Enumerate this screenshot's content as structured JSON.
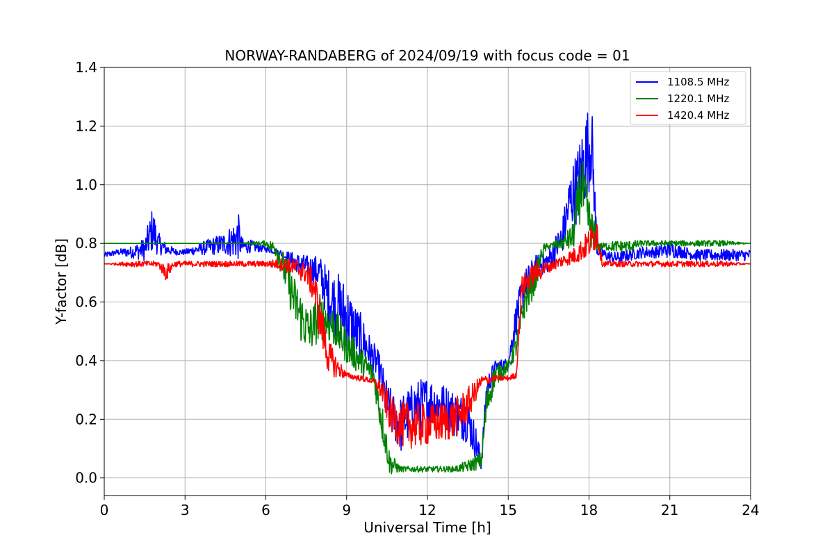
{
  "chart_data": {
    "type": "line",
    "title": "NORWAY-RANDABERG of 2024/09/19 with focus code = 01",
    "xlabel": "Universal Time [h]",
    "ylabel": "Y-factor [dB]",
    "xlim": [
      0,
      24
    ],
    "ylim": [
      -0.06,
      1.4
    ],
    "xticks": [
      0,
      3,
      6,
      9,
      12,
      15,
      18,
      21,
      24
    ],
    "xtick_labels": [
      "0",
      "3",
      "6",
      "9",
      "12",
      "15",
      "18",
      "21",
      "24"
    ],
    "yticks": [
      0.0,
      0.2,
      0.4,
      0.6,
      0.8,
      1.0,
      1.2,
      1.4
    ],
    "ytick_labels": [
      "0.0",
      "0.2",
      "0.4",
      "0.6",
      "0.8",
      "1.0",
      "1.2",
      "1.4"
    ],
    "grid": true,
    "legend_position": "top-right",
    "series": [
      {
        "name": "1108.5 MHz",
        "color": "#0000ff",
        "x": [
          0,
          0.5,
          1.0,
          1.5,
          1.8,
          2.0,
          2.3,
          2.7,
          3.0,
          3.5,
          4.0,
          4.5,
          5.0,
          5.1,
          5.5,
          6.0,
          6.5,
          7.0,
          7.5,
          8.0,
          8.3,
          8.7,
          9.0,
          9.3,
          9.6,
          9.9,
          10.2,
          10.5,
          10.8,
          11.0,
          11.5,
          12.0,
          12.5,
          13.0,
          13.5,
          13.8,
          14.0,
          14.2,
          14.5,
          15.0,
          15.3,
          15.6,
          16.0,
          16.5,
          17.0,
          17.3,
          17.6,
          17.9,
          18.1,
          18.3,
          18.6,
          19.0,
          19.5,
          20.0,
          20.5,
          21.0,
          21.5,
          22.0,
          22.5,
          23.0,
          23.5,
          24.0
        ],
        "y": [
          0.76,
          0.77,
          0.77,
          0.78,
          0.85,
          0.8,
          0.78,
          0.77,
          0.77,
          0.78,
          0.79,
          0.8,
          0.82,
          0.79,
          0.79,
          0.78,
          0.77,
          0.74,
          0.72,
          0.7,
          0.62,
          0.58,
          0.55,
          0.5,
          0.47,
          0.42,
          0.38,
          0.25,
          0.2,
          0.18,
          0.24,
          0.26,
          0.25,
          0.22,
          0.2,
          0.12,
          0.05,
          0.3,
          0.38,
          0.39,
          0.55,
          0.65,
          0.72,
          0.74,
          0.82,
          0.95,
          1.0,
          1.1,
          1.15,
          0.78,
          0.76,
          0.75,
          0.76,
          0.77,
          0.77,
          0.78,
          0.77,
          0.76,
          0.76,
          0.76,
          0.76,
          0.76
        ],
        "amplitude": [
          0.01,
          0.01,
          0.02,
          0.04,
          0.08,
          0.04,
          0.02,
          0.01,
          0.01,
          0.02,
          0.03,
          0.04,
          0.08,
          0.03,
          0.02,
          0.01,
          0.01,
          0.03,
          0.04,
          0.06,
          0.1,
          0.12,
          0.12,
          0.1,
          0.08,
          0.06,
          0.05,
          0.08,
          0.08,
          0.1,
          0.09,
          0.09,
          0.08,
          0.08,
          0.08,
          0.06,
          0.03,
          0.05,
          0.02,
          0.02,
          0.06,
          0.06,
          0.04,
          0.04,
          0.06,
          0.1,
          0.14,
          0.16,
          0.14,
          0.03,
          0.02,
          0.02,
          0.02,
          0.02,
          0.02,
          0.03,
          0.02,
          0.02,
          0.02,
          0.02,
          0.02,
          0.02
        ]
      },
      {
        "name": "1220.1 MHz",
        "color": "#008000",
        "x": [
          0,
          1.0,
          2.0,
          3.0,
          4.0,
          5.0,
          6.0,
          6.4,
          6.8,
          7.0,
          7.3,
          7.6,
          8.0,
          8.5,
          9.0,
          9.5,
          10.0,
          10.3,
          10.6,
          11.0,
          11.5,
          12.0,
          12.5,
          13.0,
          13.5,
          14.0,
          14.2,
          14.5,
          15.0,
          15.3,
          15.6,
          16.0,
          16.3,
          16.5,
          17.0,
          17.4,
          17.7,
          18.0,
          18.2,
          18.4,
          19.0,
          19.5,
          20.0,
          21.0,
          22.0,
          23.0,
          24.0
        ],
        "y": [
          0.8,
          0.8,
          0.8,
          0.8,
          0.8,
          0.8,
          0.8,
          0.78,
          0.68,
          0.62,
          0.55,
          0.5,
          0.55,
          0.52,
          0.45,
          0.4,
          0.35,
          0.2,
          0.05,
          0.03,
          0.03,
          0.03,
          0.03,
          0.03,
          0.04,
          0.06,
          0.25,
          0.35,
          0.38,
          0.45,
          0.6,
          0.68,
          0.78,
          0.79,
          0.8,
          0.82,
          1.0,
          0.88,
          0.82,
          0.79,
          0.79,
          0.79,
          0.8,
          0.8,
          0.8,
          0.8,
          0.8
        ],
        "amplitude": [
          0.0,
          0.0,
          0.0,
          0.0,
          0.0,
          0.0,
          0.01,
          0.03,
          0.07,
          0.08,
          0.09,
          0.08,
          0.08,
          0.07,
          0.06,
          0.05,
          0.04,
          0.07,
          0.04,
          0.01,
          0.01,
          0.01,
          0.01,
          0.01,
          0.02,
          0.03,
          0.06,
          0.04,
          0.02,
          0.04,
          0.06,
          0.05,
          0.02,
          0.01,
          0.02,
          0.05,
          0.12,
          0.08,
          0.06,
          0.01,
          0.02,
          0.02,
          0.01,
          0.01,
          0.01,
          0.01,
          0.0
        ]
      },
      {
        "name": "1420.4 MHz",
        "color": "#ff0000",
        "x": [
          0,
          1.0,
          2.0,
          2.3,
          2.6,
          3.0,
          4.0,
          5.0,
          6.0,
          6.5,
          7.0,
          7.5,
          7.8,
          8.0,
          8.3,
          8.6,
          9.0,
          9.5,
          10.0,
          10.3,
          10.6,
          11.0,
          11.5,
          12.0,
          12.5,
          13.0,
          13.5,
          14.0,
          14.5,
          15.0,
          15.3,
          15.5,
          16.0,
          16.5,
          17.0,
          17.5,
          18.0,
          18.3,
          18.5,
          19.0,
          20.0,
          21.0,
          22.0,
          23.0,
          24.0
        ],
        "y": [
          0.73,
          0.73,
          0.73,
          0.7,
          0.73,
          0.73,
          0.73,
          0.73,
          0.73,
          0.73,
          0.72,
          0.7,
          0.65,
          0.55,
          0.42,
          0.38,
          0.35,
          0.34,
          0.33,
          0.3,
          0.22,
          0.18,
          0.18,
          0.18,
          0.19,
          0.2,
          0.25,
          0.33,
          0.34,
          0.34,
          0.35,
          0.65,
          0.7,
          0.72,
          0.74,
          0.76,
          0.8,
          0.84,
          0.73,
          0.73,
          0.73,
          0.73,
          0.73,
          0.73,
          0.73
        ],
        "amplitude": [
          0.0,
          0.01,
          0.01,
          0.03,
          0.01,
          0.01,
          0.01,
          0.01,
          0.01,
          0.02,
          0.03,
          0.04,
          0.06,
          0.08,
          0.06,
          0.04,
          0.01,
          0.01,
          0.01,
          0.04,
          0.06,
          0.08,
          0.08,
          0.07,
          0.07,
          0.07,
          0.06,
          0.02,
          0.01,
          0.01,
          0.01,
          0.04,
          0.04,
          0.02,
          0.02,
          0.03,
          0.05,
          0.06,
          0.01,
          0.01,
          0.01,
          0.01,
          0.01,
          0.01,
          0.0
        ]
      }
    ]
  }
}
